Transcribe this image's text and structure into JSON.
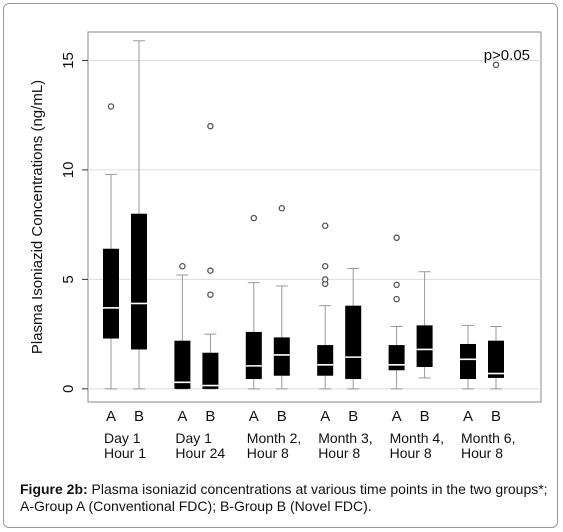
{
  "chart_data": {
    "type": "box",
    "ylabel": "Plasma Isoniazid Concentrations (ng/mL)",
    "yticks": [
      0,
      5,
      10,
      15
    ],
    "ylim": [
      -0.6,
      16.3
    ],
    "annotation": "p>0.05",
    "grid": true,
    "categories": [
      {
        "label_line1": "Day 1",
        "label_line2": "Hour 1"
      },
      {
        "label_line1": "Day 1",
        "label_line2": "Hour 24"
      },
      {
        "label_line1": "Month 2,",
        "label_line2": "Hour 8"
      },
      {
        "label_line1": "Month 3,",
        "label_line2": "Hour 8"
      },
      {
        "label_line1": "Month 4,",
        "label_line2": "Hour 8"
      },
      {
        "label_line1": "Month 6,",
        "label_line2": "Hour 8"
      }
    ],
    "group_labels": [
      "A",
      "B"
    ],
    "boxes": [
      {
        "category": 0,
        "group": "A",
        "min": 0.0,
        "q1": 2.3,
        "median": 3.7,
        "q3": 6.4,
        "max": 9.8,
        "outliers": [
          12.9
        ]
      },
      {
        "category": 0,
        "group": "B",
        "min": 0.0,
        "q1": 1.8,
        "median": 3.9,
        "q3": 8.0,
        "max": 15.9,
        "outliers": []
      },
      {
        "category": 1,
        "group": "A",
        "min": 0.0,
        "q1": 0.0,
        "median": 0.3,
        "q3": 2.2,
        "max": 5.2,
        "outliers": [
          5.6
        ]
      },
      {
        "category": 1,
        "group": "B",
        "min": 0.0,
        "q1": 0.0,
        "median": 0.15,
        "q3": 1.65,
        "max": 2.5,
        "outliers": [
          4.3,
          5.4,
          12.0
        ]
      },
      {
        "category": 2,
        "group": "A",
        "min": 0.0,
        "q1": 0.45,
        "median": 1.05,
        "q3": 2.6,
        "max": 4.85,
        "outliers": [
          7.8
        ]
      },
      {
        "category": 2,
        "group": "B",
        "min": 0.0,
        "q1": 0.6,
        "median": 1.55,
        "q3": 2.35,
        "max": 4.7,
        "outliers": [
          8.25
        ]
      },
      {
        "category": 3,
        "group": "A",
        "min": 0.0,
        "q1": 0.6,
        "median": 1.1,
        "q3": 2.0,
        "max": 3.8,
        "outliers": [
          4.8,
          5.0,
          5.6,
          7.45
        ]
      },
      {
        "category": 3,
        "group": "B",
        "min": 0.0,
        "q1": 0.45,
        "median": 1.45,
        "q3": 3.8,
        "max": 5.5,
        "outliers": []
      },
      {
        "category": 4,
        "group": "A",
        "min": 0.0,
        "q1": 0.85,
        "median": 1.1,
        "q3": 2.0,
        "max": 2.85,
        "outliers": [
          4.1,
          4.75,
          6.9
        ]
      },
      {
        "category": 4,
        "group": "B",
        "min": 0.5,
        "q1": 1.0,
        "median": 1.8,
        "q3": 2.9,
        "max": 5.35,
        "outliers": []
      },
      {
        "category": 5,
        "group": "A",
        "min": 0.0,
        "q1": 0.45,
        "median": 1.35,
        "q3": 2.05,
        "max": 2.9,
        "outliers": []
      },
      {
        "category": 5,
        "group": "B",
        "min": 0.0,
        "q1": 0.5,
        "median": 0.7,
        "q3": 2.2,
        "max": 2.85,
        "outliers": [
          14.8
        ]
      }
    ]
  },
  "caption": {
    "label": "Figure 2b:",
    "text": " Plasma isoniazid concentrations at various time points in the two groups*; A-Group A (Conventional FDC); B-Group B (Novel FDC)."
  }
}
